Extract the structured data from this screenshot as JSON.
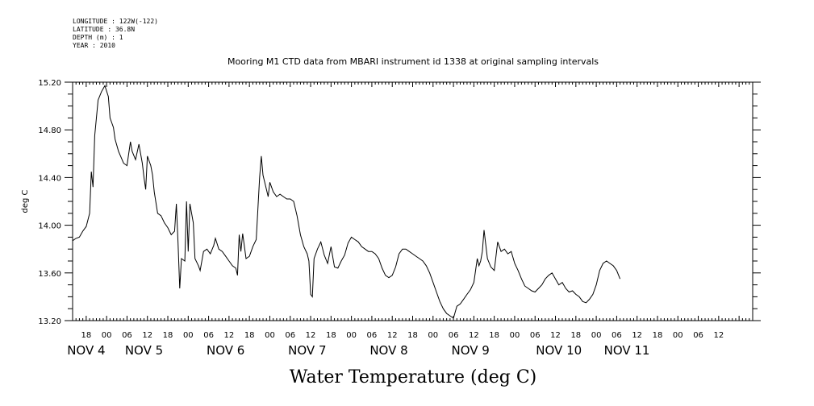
{
  "header": {
    "longitude": "LONGITUDE : 122W(-122)",
    "latitude": "LATITUDE : 36.8N",
    "depth": "DEPTH (m) : 1",
    "year": "YEAR : 2010"
  },
  "chart_data": {
    "type": "line",
    "title": "Mooring M1 CTD data from MBARI instrument id 1338 at original sampling intervals",
    "xlabel": "Water Temperature (deg C)",
    "ylabel": "deg C",
    "ylim": [
      13.2,
      15.2
    ],
    "xlim_hours": [
      -10,
      190
    ],
    "yticks": [
      "13.20",
      "13.60",
      "14.00",
      "14.40",
      "14.80",
      "15.20"
    ],
    "hour_ticks": [
      {
        "h": -6,
        "label": "18"
      },
      {
        "h": 0,
        "label": "00"
      },
      {
        "h": 6,
        "label": "06"
      },
      {
        "h": 12,
        "label": "12"
      },
      {
        "h": 18,
        "label": "18"
      },
      {
        "h": 24,
        "label": "00"
      },
      {
        "h": 30,
        "label": "06"
      },
      {
        "h": 36,
        "label": "12"
      },
      {
        "h": 42,
        "label": "18"
      },
      {
        "h": 48,
        "label": "00"
      },
      {
        "h": 54,
        "label": "06"
      },
      {
        "h": 60,
        "label": "12"
      },
      {
        "h": 66,
        "label": "18"
      },
      {
        "h": 72,
        "label": "00"
      },
      {
        "h": 78,
        "label": "06"
      },
      {
        "h": 84,
        "label": "12"
      },
      {
        "h": 90,
        "label": "18"
      },
      {
        "h": 96,
        "label": "00"
      },
      {
        "h": 102,
        "label": "06"
      },
      {
        "h": 108,
        "label": "12"
      },
      {
        "h": 114,
        "label": "18"
      },
      {
        "h": 120,
        "label": "00"
      },
      {
        "h": 126,
        "label": "06"
      },
      {
        "h": 132,
        "label": "12"
      },
      {
        "h": 138,
        "label": "18"
      },
      {
        "h": 144,
        "label": "00"
      },
      {
        "h": 150,
        "label": "06"
      },
      {
        "h": 156,
        "label": "12"
      },
      {
        "h": 162,
        "label": "18"
      },
      {
        "h": 168,
        "label": "00"
      },
      {
        "h": 174,
        "label": "06"
      },
      {
        "h": 180,
        "label": "12"
      }
    ],
    "date_labels": [
      {
        "h": -6,
        "label": "NOV  4"
      },
      {
        "h": 11,
        "label": "NOV  5"
      },
      {
        "h": 35,
        "label": "NOV  6"
      },
      {
        "h": 59,
        "label": "NOV  7"
      },
      {
        "h": 83,
        "label": "NOV  8"
      },
      {
        "h": 107,
        "label": "NOV  9"
      },
      {
        "h": 133,
        "label": "NOV 10"
      },
      {
        "h": 153,
        "label": "NOV 11"
      }
    ],
    "series": [
      {
        "points": [
          [
            -10,
            13.87
          ],
          [
            -9,
            13.89
          ],
          [
            -8,
            13.9
          ],
          [
            -7,
            13.95
          ],
          [
            -6,
            13.99
          ],
          [
            -5,
            14.1
          ],
          [
            -4.5,
            14.45
          ],
          [
            -4,
            14.32
          ],
          [
            -3.5,
            14.75
          ],
          [
            -2.5,
            15.05
          ],
          [
            -1.5,
            15.12
          ],
          [
            -0.5,
            15.17
          ],
          [
            0.5,
            15.08
          ],
          [
            1,
            14.9
          ],
          [
            2,
            14.82
          ],
          [
            2.5,
            14.72
          ],
          [
            3.5,
            14.62
          ],
          [
            5,
            14.52
          ],
          [
            6,
            14.5
          ],
          [
            7,
            14.7
          ],
          [
            7.5,
            14.62
          ],
          [
            8.5,
            14.55
          ],
          [
            9.5,
            14.68
          ],
          [
            10.5,
            14.52
          ],
          [
            11,
            14.4
          ],
          [
            11.5,
            14.3
          ],
          [
            12,
            14.58
          ],
          [
            13,
            14.5
          ],
          [
            13.5,
            14.42
          ],
          [
            14,
            14.28
          ],
          [
            15,
            14.1
          ],
          [
            16,
            14.08
          ],
          [
            17,
            14.02
          ],
          [
            18,
            13.98
          ],
          [
            19,
            13.92
          ],
          [
            20,
            13.95
          ],
          [
            20.5,
            14.18
          ],
          [
            21,
            13.85
          ],
          [
            21.5,
            13.47
          ],
          [
            22,
            13.72
          ],
          [
            23,
            13.7
          ],
          [
            23.5,
            14.2
          ],
          [
            24,
            13.78
          ],
          [
            24.5,
            14.18
          ],
          [
            25.5,
            14.02
          ],
          [
            26,
            13.72
          ],
          [
            27,
            13.66
          ],
          [
            27.5,
            13.62
          ],
          [
            28.5,
            13.78
          ],
          [
            29.5,
            13.8
          ],
          [
            30.5,
            13.76
          ],
          [
            31.5,
            13.83
          ],
          [
            32,
            13.89
          ],
          [
            33,
            13.8
          ],
          [
            34,
            13.78
          ],
          [
            35,
            13.74
          ],
          [
            36,
            13.7
          ],
          [
            37,
            13.66
          ],
          [
            38,
            13.64
          ],
          [
            38.5,
            13.58
          ],
          [
            39,
            13.92
          ],
          [
            39.5,
            13.78
          ],
          [
            40,
            13.93
          ],
          [
            41,
            13.72
          ],
          [
            42,
            13.74
          ],
          [
            43,
            13.82
          ],
          [
            44,
            13.88
          ],
          [
            45,
            14.4
          ],
          [
            45.5,
            14.58
          ],
          [
            46,
            14.42
          ],
          [
            47,
            14.3
          ],
          [
            47.5,
            14.24
          ],
          [
            48,
            14.36
          ],
          [
            49,
            14.28
          ],
          [
            50,
            14.24
          ],
          [
            51,
            14.26
          ],
          [
            52,
            14.24
          ],
          [
            53,
            14.22
          ],
          [
            54,
            14.22
          ],
          [
            55,
            14.2
          ],
          [
            56,
            14.08
          ],
          [
            57,
            13.92
          ],
          [
            58,
            13.82
          ],
          [
            59,
            13.76
          ],
          [
            59.5,
            13.7
          ],
          [
            60,
            13.42
          ],
          [
            60.5,
            13.4
          ],
          [
            61,
            13.72
          ],
          [
            62,
            13.8
          ],
          [
            63,
            13.86
          ],
          [
            64,
            13.75
          ],
          [
            65,
            13.68
          ],
          [
            66,
            13.82
          ],
          [
            67,
            13.65
          ],
          [
            68,
            13.64
          ],
          [
            69,
            13.7
          ],
          [
            70,
            13.75
          ],
          [
            71,
            13.85
          ],
          [
            72,
            13.9
          ],
          [
            73,
            13.88
          ],
          [
            74,
            13.86
          ],
          [
            75,
            13.82
          ],
          [
            76,
            13.8
          ],
          [
            77,
            13.78
          ],
          [
            78,
            13.78
          ],
          [
            79,
            13.76
          ],
          [
            80,
            13.72
          ],
          [
            81,
            13.64
          ],
          [
            82,
            13.58
          ],
          [
            83,
            13.56
          ],
          [
            84,
            13.58
          ],
          [
            85,
            13.65
          ],
          [
            86,
            13.76
          ],
          [
            87,
            13.8
          ],
          [
            88,
            13.8
          ],
          [
            89,
            13.78
          ],
          [
            90,
            13.76
          ],
          [
            91,
            13.74
          ],
          [
            92,
            13.72
          ],
          [
            93,
            13.7
          ],
          [
            94,
            13.66
          ],
          [
            95,
            13.6
          ],
          [
            96,
            13.52
          ],
          [
            97,
            13.44
          ],
          [
            98,
            13.36
          ],
          [
            99,
            13.3
          ],
          [
            100,
            13.26
          ],
          [
            101,
            13.24
          ],
          [
            102,
            13.22
          ],
          [
            103,
            13.32
          ],
          [
            104,
            13.34
          ],
          [
            105,
            13.38
          ],
          [
            106,
            13.42
          ],
          [
            107,
            13.46
          ],
          [
            108,
            13.52
          ],
          [
            109,
            13.72
          ],
          [
            109.5,
            13.66
          ],
          [
            110,
            13.7
          ],
          [
            110.5,
            13.78
          ],
          [
            111,
            13.96
          ],
          [
            111.5,
            13.84
          ],
          [
            112,
            13.72
          ],
          [
            113,
            13.65
          ],
          [
            114,
            13.62
          ],
          [
            115,
            13.86
          ],
          [
            116,
            13.78
          ],
          [
            117,
            13.8
          ],
          [
            118,
            13.76
          ],
          [
            119,
            13.78
          ],
          [
            120,
            13.68
          ],
          [
            121,
            13.62
          ],
          [
            122,
            13.55
          ],
          [
            123,
            13.49
          ],
          [
            124,
            13.47
          ],
          [
            125,
            13.45
          ],
          [
            126,
            13.44
          ],
          [
            127,
            13.47
          ],
          [
            128,
            13.5
          ],
          [
            129,
            13.55
          ],
          [
            130,
            13.58
          ],
          [
            131,
            13.6
          ],
          [
            132,
            13.55
          ],
          [
            133,
            13.5
          ],
          [
            134,
            13.52
          ],
          [
            135,
            13.47
          ],
          [
            136,
            13.44
          ],
          [
            137,
            13.45
          ],
          [
            138,
            13.42
          ],
          [
            139,
            13.4
          ],
          [
            140,
            13.36
          ],
          [
            141,
            13.35
          ],
          [
            142,
            13.38
          ],
          [
            143,
            13.42
          ],
          [
            144,
            13.5
          ],
          [
            145,
            13.62
          ],
          [
            146,
            13.68
          ],
          [
            147,
            13.7
          ],
          [
            148,
            13.68
          ],
          [
            149,
            13.66
          ],
          [
            150,
            13.62
          ],
          [
            151,
            13.55
          ]
        ]
      }
    ]
  }
}
